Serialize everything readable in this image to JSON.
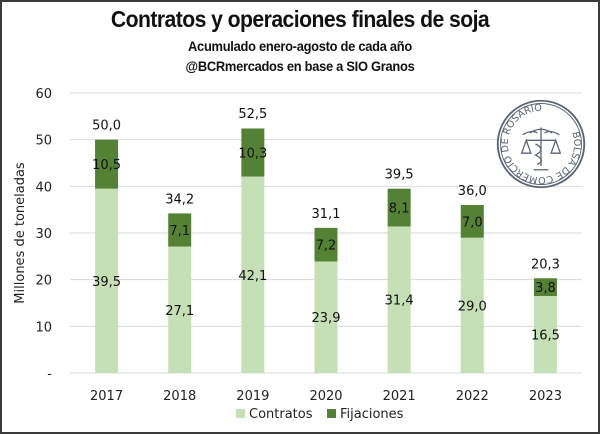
{
  "chart_data": {
    "type": "bar",
    "stacked": true,
    "title": "Contratos y operaciones finales de soja",
    "subtitle": "Acumulado enero-agosto  de cada año",
    "source": "@BCRmercados en base a SIO Granos",
    "xlabel": "",
    "ylabel": "Millones de toneladas",
    "ylim": [
      0,
      60
    ],
    "yticks": [
      0,
      10,
      20,
      30,
      40,
      50,
      60
    ],
    "ytick_labels": [
      "-",
      "10",
      "20",
      "30",
      "40",
      "50",
      "60"
    ],
    "grid": true,
    "categories": [
      "2017",
      "2018",
      "2019",
      "2020",
      "2021",
      "2022",
      "2023"
    ],
    "series": [
      {
        "name": "Contratos",
        "color": "#c5e0b4",
        "values": [
          39.5,
          27.1,
          42.1,
          23.9,
          31.4,
          29.0,
          16.5
        ],
        "labels": [
          "39,5",
          "27,1",
          "42,1",
          "23,9",
          "31,4",
          "29,0",
          "16,5"
        ]
      },
      {
        "name": "Fijaciones",
        "color": "#548235",
        "values": [
          10.5,
          7.1,
          10.3,
          7.2,
          8.1,
          7.0,
          3.8
        ],
        "labels": [
          "10,5",
          "7,1",
          "10,3",
          "7,2",
          "8,1",
          "7,0",
          "3,8"
        ]
      }
    ],
    "totals": [
      50.0,
      34.2,
      52.5,
      31.1,
      39.5,
      36.0,
      20.3
    ],
    "total_labels": [
      "50,0",
      "34,2",
      "52,5",
      "31,1",
      "39,5",
      "36,0",
      "20,3"
    ],
    "legend": {
      "position": "bottom",
      "entries": [
        "Contratos",
        "Fijaciones"
      ]
    }
  },
  "logo": {
    "text": "BOLSA DE COMERCIO DE ROSARIO",
    "color": "#5a6478"
  }
}
